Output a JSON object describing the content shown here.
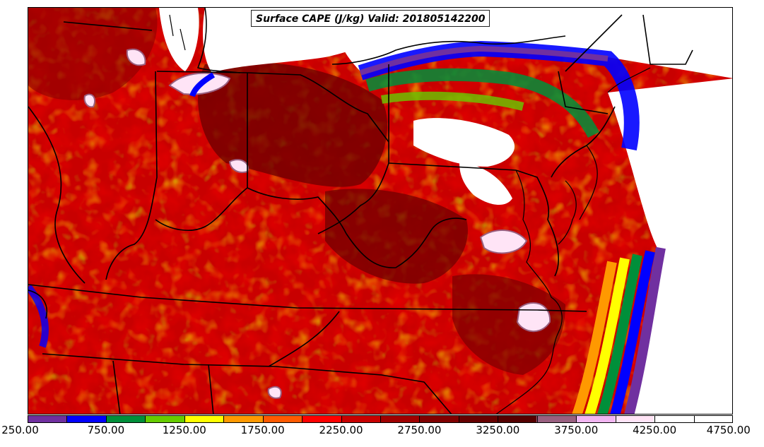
{
  "title": "Surface CAPE (J/kg) Valid: 201805142200",
  "colorbar": {
    "colors": [
      "#7030a0",
      "#0000ff",
      "#008f3a",
      "#66cc00",
      "#ffff00",
      "#ff9900",
      "#ff5a00",
      "#ff0000",
      "#c80000",
      "#a00000",
      "#800000",
      "#660000",
      "#550000",
      "#996080",
      "#f2b6f2",
      "#ffe4f6",
      "#ffffff",
      "#ffffff"
    ],
    "labels": [
      "250.00",
      "750.00",
      "1250.00",
      "1750.00",
      "2250.00",
      "2750.00",
      "3250.00",
      "3750.00",
      "4250.00",
      "4750.00"
    ]
  },
  "map": {
    "variable": "Surface CAPE",
    "units": "J/kg",
    "valid_time": "201805142200",
    "fill_colors": {
      "ocean_void": "#ffffff",
      "lakes": "#ffffff",
      "low_cape": "#7030a0",
      "mid_cape": "#ff9900",
      "high_cape": "#b00000",
      "extreme_cape": "#ffe4f6"
    },
    "boundary_color": "#000000"
  }
}
